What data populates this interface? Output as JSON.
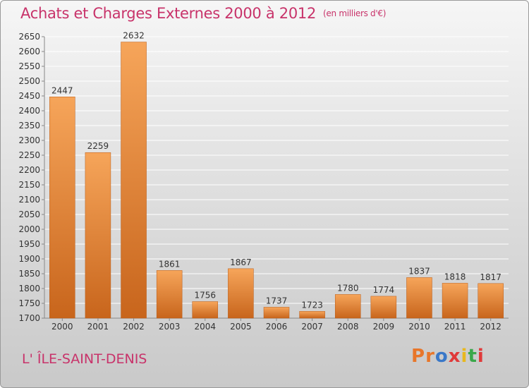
{
  "header": {
    "title": "Achats et Charges Externes 2000 à 2012",
    "subtitle": "(en milliers d'€)"
  },
  "footer": {
    "place": "L' ÎLE-SAINT-DENIS",
    "logo": "Proxiti"
  },
  "colors": {
    "accent": "#c8336a",
    "bar_light": "#f6a55a",
    "bar_dark": "#c8651c",
    "logo_letters": [
      "#e8762a",
      "#e8762a",
      "#3a78c8",
      "#e03a3a",
      "#e8b81e",
      "#3aa84a",
      "#e03a3a"
    ]
  },
  "chart_data": {
    "type": "bar",
    "title": "Achats et Charges Externes 2000 à 2012",
    "subtitle": "(en milliers d'€)",
    "categories": [
      "2000",
      "2001",
      "2002",
      "2003",
      "2004",
      "2005",
      "2006",
      "2007",
      "2008",
      "2009",
      "2010",
      "2011",
      "2012"
    ],
    "values": [
      2447,
      2259,
      2632,
      1861,
      1756,
      1867,
      1737,
      1723,
      1780,
      1774,
      1837,
      1818,
      1817
    ],
    "ylim": [
      1700,
      2650
    ],
    "yticks": [
      1700,
      1750,
      1800,
      1850,
      1900,
      1950,
      2000,
      2050,
      2100,
      2150,
      2200,
      2250,
      2300,
      2350,
      2400,
      2450,
      2500,
      2550,
      2600,
      2650
    ],
    "grid": true,
    "legend": "none"
  }
}
